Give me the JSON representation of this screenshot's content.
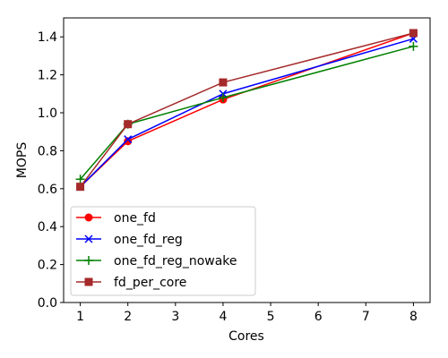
{
  "chart_data": {
    "type": "line",
    "title": "",
    "xlabel": "Cores",
    "ylabel": "MOPS",
    "xlim": [
      0.65,
      8.35
    ],
    "ylim": [
      0.0,
      1.5
    ],
    "xticks": [
      1,
      2,
      3,
      4,
      5,
      6,
      7,
      8
    ],
    "yticks": [
      0.0,
      0.2,
      0.4,
      0.6,
      0.8,
      1.0,
      1.2,
      1.4
    ],
    "ytick_labels": [
      "0.0",
      "0.2",
      "0.4",
      "0.6",
      "0.8",
      "1.0",
      "1.2",
      "1.4"
    ],
    "grid": false,
    "legend_position": "lower-left",
    "x": [
      1,
      2,
      4,
      8
    ],
    "series": [
      {
        "name": "one_fd",
        "values": [
          0.61,
          0.85,
          1.07,
          1.42
        ],
        "color": "#ff0000",
        "marker": "circle"
      },
      {
        "name": "one_fd_reg",
        "values": [
          0.61,
          0.86,
          1.1,
          1.39
        ],
        "color": "#0000ff",
        "marker": "x"
      },
      {
        "name": "one_fd_reg_nowake",
        "values": [
          0.65,
          0.94,
          1.08,
          1.35
        ],
        "color": "#008000",
        "marker": "plus"
      },
      {
        "name": "fd_per_core",
        "values": [
          0.61,
          0.94,
          1.16,
          1.42
        ],
        "color": "#a52a2a",
        "marker": "square"
      }
    ]
  }
}
